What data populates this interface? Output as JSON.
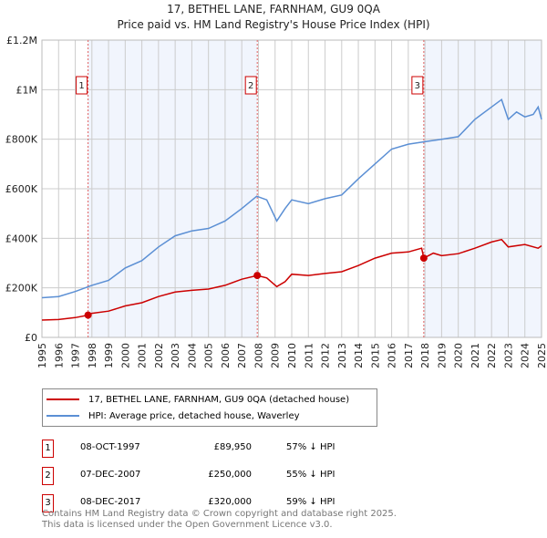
{
  "title": "17, BETHEL LANE, FARNHAM, GU9 0QA",
  "subtitle": "Price paid vs. HM Land Registry's House Price Index (HPI)",
  "chart_data": {
    "type": "line",
    "ylim": [
      0,
      1200000
    ],
    "xlim": [
      1995,
      2025
    ],
    "yticks": [
      {
        "v": 0,
        "label": "£0"
      },
      {
        "v": 200000,
        "label": "£200K"
      },
      {
        "v": 400000,
        "label": "£400K"
      },
      {
        "v": 600000,
        "label": "£600K"
      },
      {
        "v": 800000,
        "label": "£800K"
      },
      {
        "v": 1000000,
        "label": "£1M"
      },
      {
        "v": 1200000,
        "label": "£1.2M"
      }
    ],
    "xticks": [
      "1995",
      "1996",
      "1997",
      "1998",
      "1999",
      "2000",
      "2001",
      "2002",
      "2003",
      "2004",
      "2005",
      "2006",
      "2007",
      "2008",
      "2009",
      "2010",
      "2011",
      "2012",
      "2013",
      "2014",
      "2015",
      "2016",
      "2017",
      "2018",
      "2019",
      "2020",
      "2021",
      "2022",
      "2023",
      "2024",
      "2025"
    ],
    "series": [
      {
        "name": "17, BETHEL LANE, FARNHAM, GU9 0QA (detached house)",
        "color": "#cc0000",
        "x": [
          1995,
          1996,
          1997,
          1997.77,
          1998,
          1999,
          2000,
          2001,
          2002,
          2003,
          2004,
          2005,
          2006,
          2007,
          2007.93,
          2008.5,
          2009.1,
          2009.6,
          2010,
          2011,
          2012,
          2013,
          2014,
          2015,
          2016,
          2017,
          2017.8,
          2017.93,
          2018.5,
          2019,
          2020,
          2021,
          2022,
          2022.6,
          2023,
          2024,
          2024.8,
          2025
        ],
        "y": [
          70000,
          72000,
          80000,
          89950,
          97000,
          106000,
          127000,
          140000,
          165000,
          183000,
          190000,
          195000,
          210000,
          235000,
          250000,
          240000,
          205000,
          225000,
          255000,
          250000,
          258000,
          265000,
          290000,
          320000,
          340000,
          345000,
          360000,
          320000,
          340000,
          330000,
          338000,
          360000,
          385000,
          395000,
          365000,
          375000,
          360000,
          370000
        ]
      },
      {
        "name": "HPI: Average price, detached house, Waverley",
        "color": "#5b8fd4",
        "x": [
          1995,
          1996,
          1997,
          1998,
          1999,
          2000,
          2001,
          2002,
          2003,
          2004,
          2005,
          2006,
          2007,
          2007.9,
          2008.5,
          2009.1,
          2009.6,
          2010,
          2011,
          2012,
          2013,
          2014,
          2015,
          2016,
          2017,
          2018,
          2019,
          2020,
          2021,
          2022,
          2022.6,
          2023,
          2023.5,
          2024,
          2024.5,
          2024.8,
          2025
        ],
        "y": [
          160000,
          165000,
          185000,
          210000,
          230000,
          280000,
          310000,
          365000,
          410000,
          430000,
          440000,
          470000,
          520000,
          570000,
          555000,
          470000,
          520000,
          555000,
          540000,
          560000,
          575000,
          640000,
          700000,
          760000,
          780000,
          790000,
          800000,
          810000,
          880000,
          930000,
          960000,
          880000,
          910000,
          890000,
          900000,
          930000,
          880000
        ]
      }
    ],
    "sales": [
      {
        "id": "1",
        "x": 1997.77,
        "date": "08-OCT-1997",
        "price": "£89,950",
        "value": 89950,
        "hpi": "57% ↓ HPI"
      },
      {
        "id": "2",
        "x": 2007.93,
        "date": "07-DEC-2007",
        "price": "£250,000",
        "value": 250000,
        "hpi": "55% ↓ HPI"
      },
      {
        "id": "3",
        "x": 2017.93,
        "date": "08-DEC-2017",
        "price": "£320,000",
        "value": 320000,
        "hpi": "59% ↓ HPI"
      }
    ]
  },
  "footer": [
    "Contains HM Land Registry data © Crown copyright and database right 2025.",
    "This data is licensed under the Open Government Licence v3.0."
  ]
}
